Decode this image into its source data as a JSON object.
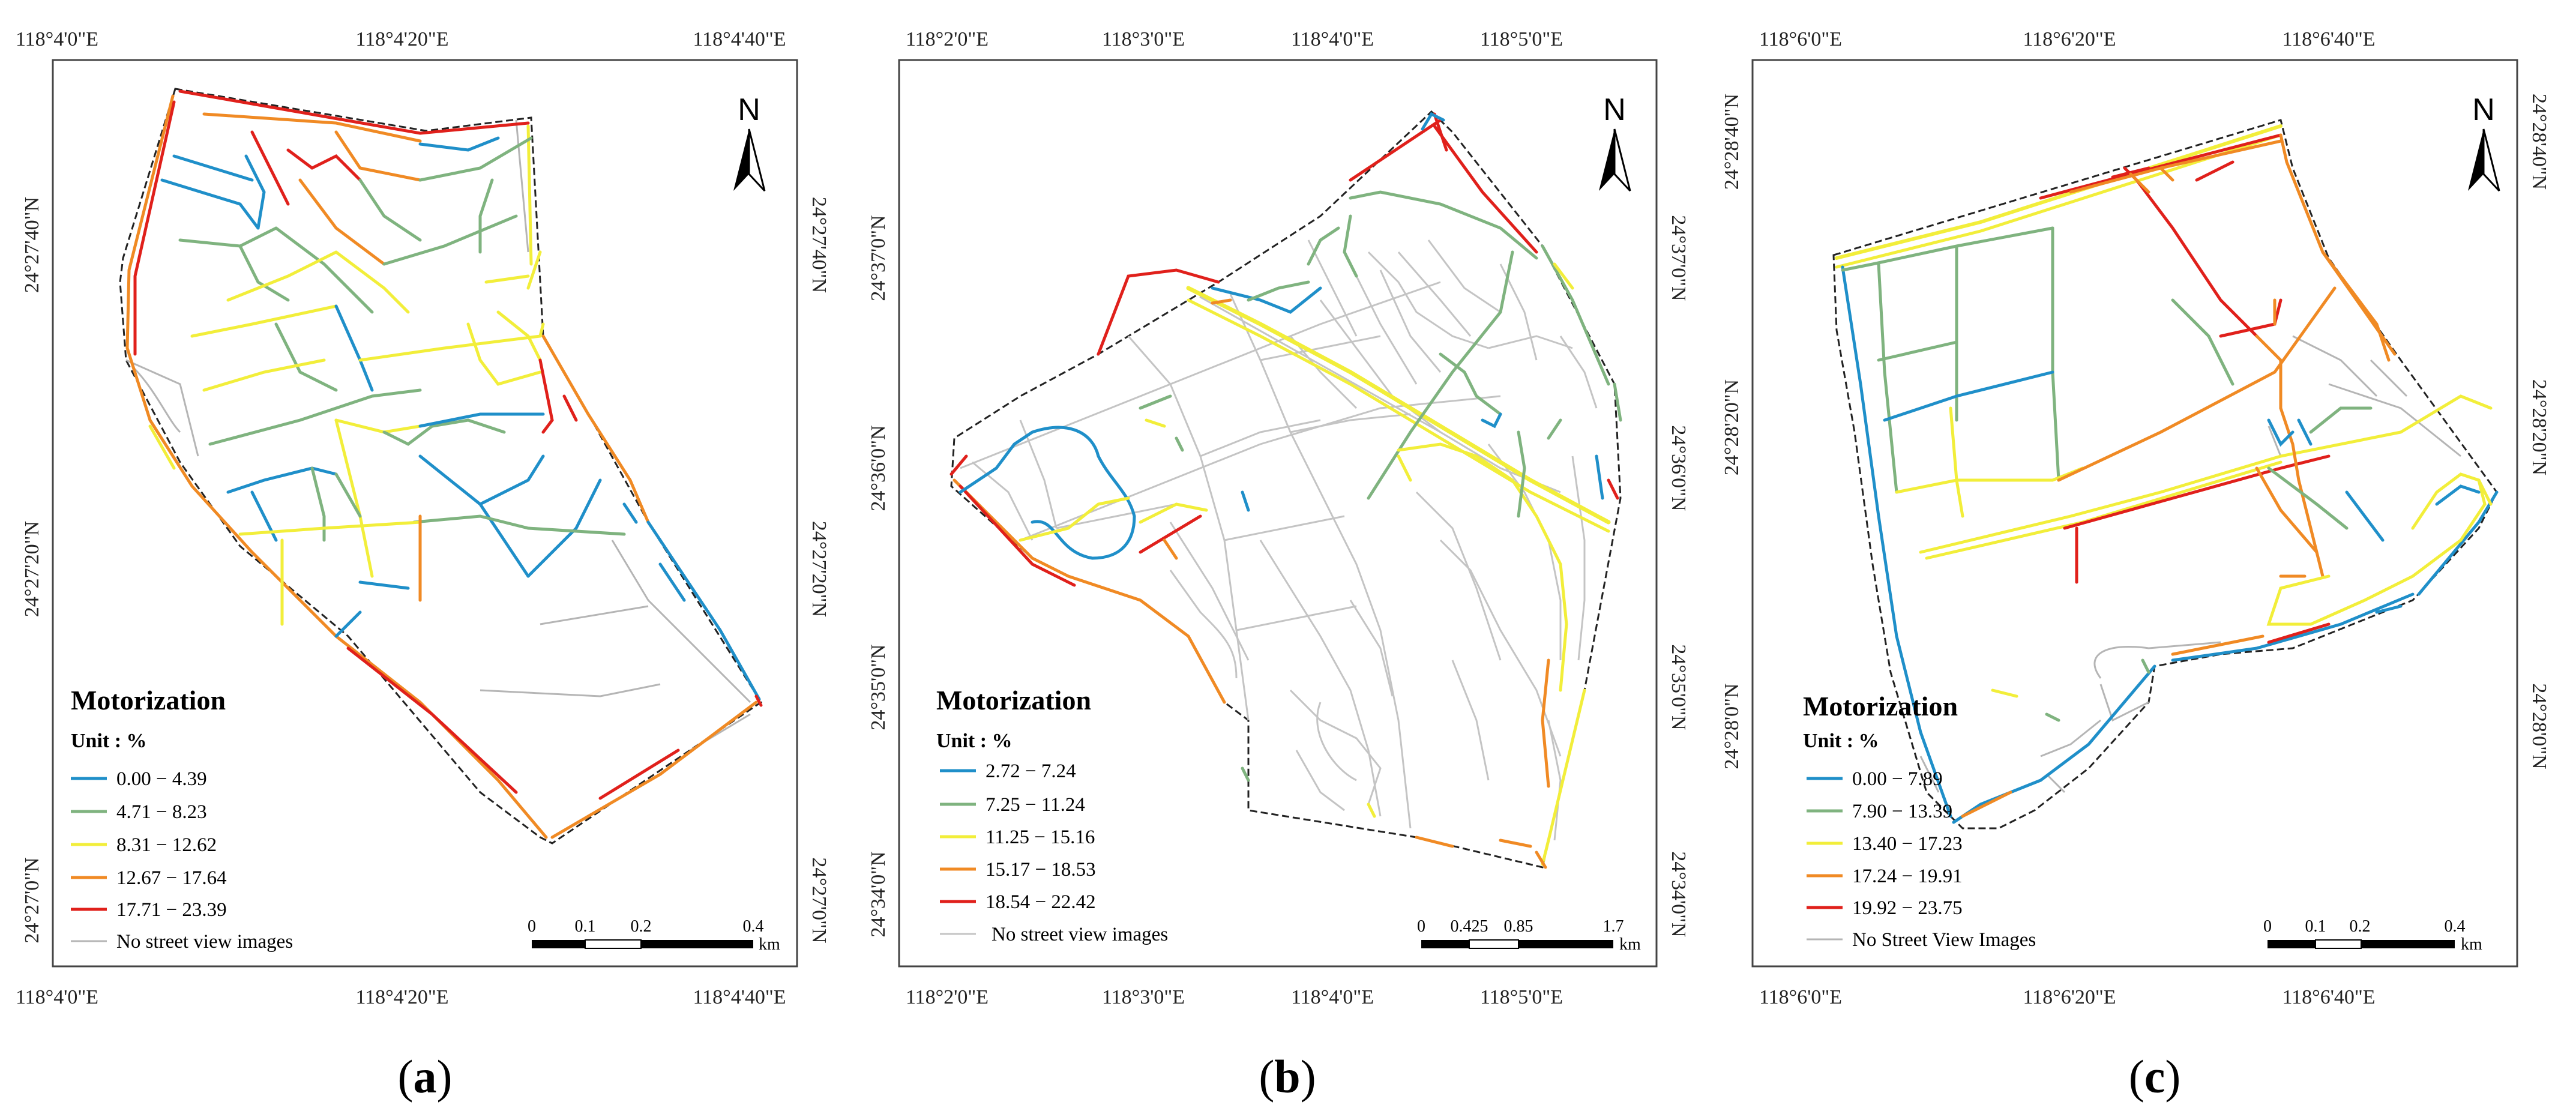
{
  "colors": {
    "class1": "#1f8fc9",
    "class2": "#7fb37f",
    "class3": "#f2ee3a",
    "class4": "#f08a24",
    "class5": "#e0201b",
    "none": "#b5b5b5"
  },
  "panels": [
    {
      "id": "a",
      "label": "a",
      "top_lon": [
        "118°4'0\"E",
        "118°4'20\"E",
        "118°4'40\"E"
      ],
      "bottom_lon": [
        "118°4'0\"E",
        "118°4'20\"E",
        "118°4'40\"E"
      ],
      "lat": [
        "24°27'40\"N",
        "24°27'20\"N",
        "24°27'0\"N"
      ],
      "north": "N",
      "legend": {
        "title": "Motorization",
        "unit": "Unit : %",
        "items": [
          "0.00 − 4.39",
          "4.71 − 8.23",
          "8.31 − 12.62",
          "12.67 − 17.64",
          "17.71 − 23.39"
        ],
        "none_label": "No street view images"
      },
      "scale": {
        "ticks": [
          "0",
          "0.1",
          "0.2",
          "0.4"
        ],
        "unit": "km"
      }
    },
    {
      "id": "b",
      "label": "b",
      "top_lon": [
        "118°2'0\"E",
        "118°3'0\"E",
        "118°4'0\"E",
        "118°5'0\"E"
      ],
      "bottom_lon": [
        "118°2'0\"E",
        "118°3'0\"E",
        "118°4'0\"E",
        "118°5'0\"E"
      ],
      "lat": [
        "24°37'0\"N",
        "24°36'0\"N",
        "24°35'0\"N",
        "24°34'0\"N"
      ],
      "north": "N",
      "legend": {
        "title": "Motorization",
        "unit": "Unit : %",
        "items": [
          "2.72 − 7.24",
          "7.25 − 11.24",
          "11.25 − 15.16",
          "15.17 − 18.53",
          "18.54 − 22.42"
        ],
        "none_label": "No street view images"
      },
      "scale": {
        "ticks": [
          "0",
          "0.425",
          "0.85",
          "1.7"
        ],
        "unit": "km"
      }
    },
    {
      "id": "c",
      "label": "c",
      "top_lon": [
        "118°6'0\"E",
        "118°6'20\"E",
        "118°6'40\"E"
      ],
      "bottom_lon": [
        "118°6'0\"E",
        "118°6'20\"E",
        "118°6'40\"E"
      ],
      "lat": [
        "24°28'40\"N",
        "24°28'20\"N",
        "24°28'0\"N"
      ],
      "north": "N",
      "legend": {
        "title": "Motorization",
        "unit": "Unit : %",
        "items": [
          "0.00 − 7.89",
          "7.90 − 13.39",
          "13.40 − 17.23",
          "17.24 − 19.91",
          "19.92 − 23.75"
        ],
        "none_label": "No Street View Images"
      },
      "scale": {
        "ticks": [
          "0",
          "0.1",
          "0.2",
          "0.4"
        ],
        "unit": "km"
      }
    }
  ]
}
